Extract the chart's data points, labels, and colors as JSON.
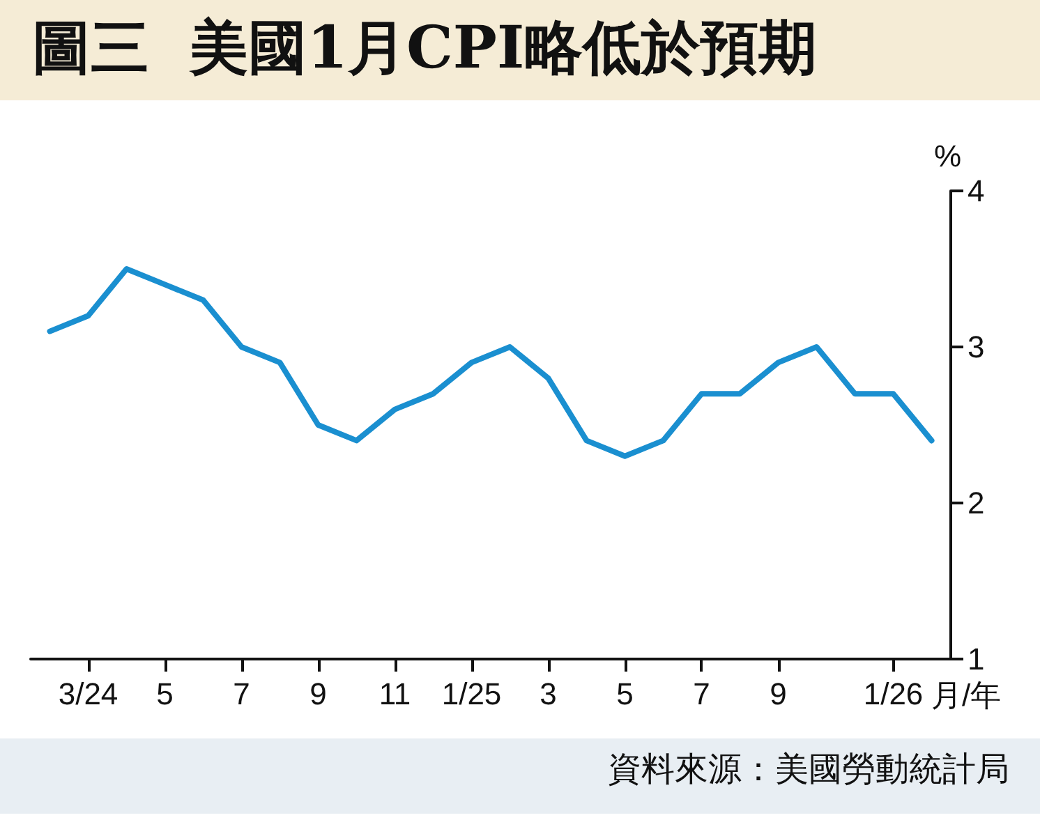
{
  "chart_data": {
    "type": "line",
    "title": "圖三  美國1月CPI略低於預期",
    "categories": [
      null,
      "3/24",
      null,
      "5",
      null,
      "7",
      null,
      "9",
      null,
      "11",
      null,
      "1/25",
      null,
      "3",
      null,
      "5",
      null,
      "7",
      null,
      "9",
      null,
      null,
      "1/26",
      null
    ],
    "series": [
      {
        "color": "#1a8fd0",
        "values": [
          3.1,
          3.2,
          3.5,
          3.4,
          3.3,
          3.0,
          2.9,
          2.5,
          2.4,
          2.6,
          2.7,
          2.9,
          3.0,
          2.8,
          2.4,
          2.3,
          2.4,
          2.7,
          2.7,
          2.9,
          3.0,
          2.7,
          2.7,
          2.4
        ]
      }
    ],
    "ylabel": "%",
    "xlabel": "月/年",
    "ylim": [
      1,
      4
    ],
    "yticks": [
      1,
      2,
      3,
      4
    ],
    "grid": false,
    "marker": "none",
    "line_style": "solid",
    "annotations": [
      "資料來源：美國勞動統計局"
    ]
  }
}
